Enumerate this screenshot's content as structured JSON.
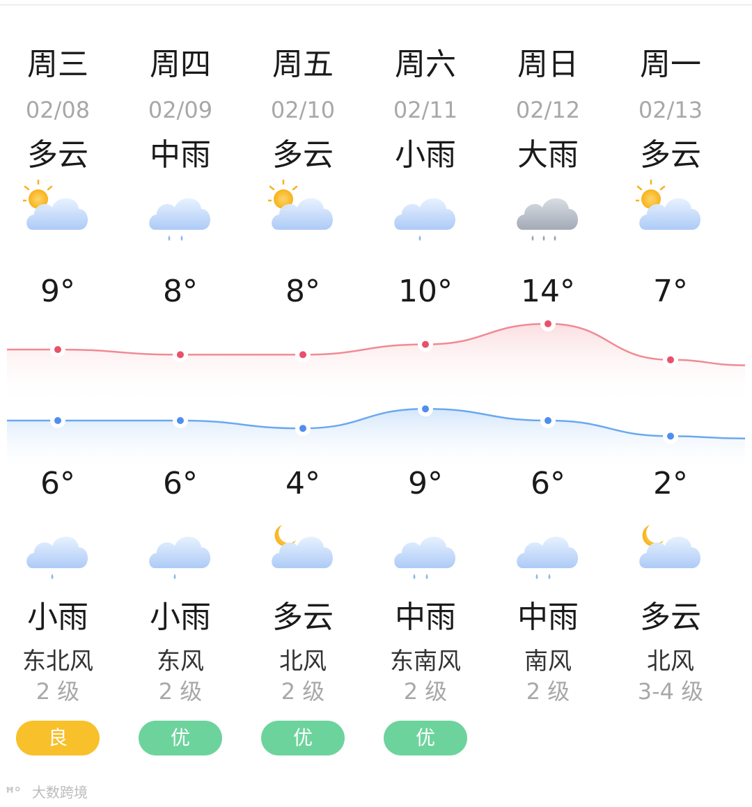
{
  "days": [
    {
      "weekday": "周三",
      "date": "02/08",
      "day_condition": "多云",
      "day_icon": "partly-cloudy-day-icon",
      "high": "9°",
      "low": "6°",
      "night_icon": "light-rain-icon",
      "night_condition": "小雨",
      "wind": "东北风",
      "wind_level": "2 级",
      "aqi": "良",
      "aqi_color": "#f8c02b"
    },
    {
      "weekday": "周四",
      "date": "02/09",
      "day_condition": "中雨",
      "day_icon": "moderate-rain-icon",
      "high": "8°",
      "low": "6°",
      "night_icon": "light-rain-icon",
      "night_condition": "小雨",
      "wind": "东风",
      "wind_level": "2 级",
      "aqi": "优",
      "aqi_color": "#6dd39c"
    },
    {
      "weekday": "周五",
      "date": "02/10",
      "day_condition": "多云",
      "day_icon": "partly-cloudy-day-icon",
      "high": "8°",
      "low": "4°",
      "night_icon": "partly-cloudy-night-icon",
      "night_condition": "多云",
      "wind": "北风",
      "wind_level": "2 级",
      "aqi": "优",
      "aqi_color": "#6dd39c"
    },
    {
      "weekday": "周六",
      "date": "02/11",
      "day_condition": "小雨",
      "day_icon": "light-rain-icon",
      "high": "10°",
      "low": "9°",
      "night_icon": "moderate-rain-icon",
      "night_condition": "中雨",
      "wind": "东南风",
      "wind_level": "2 级",
      "aqi": "优",
      "aqi_color": "#6dd39c"
    },
    {
      "weekday": "周日",
      "date": "02/12",
      "day_condition": "大雨",
      "day_icon": "heavy-rain-icon",
      "high": "14°",
      "low": "6°",
      "night_icon": "moderate-rain-icon",
      "night_condition": "中雨",
      "wind": "南风",
      "wind_level": "2 级",
      "aqi": "",
      "aqi_color": ""
    },
    {
      "weekday": "周一",
      "date": "02/13",
      "day_condition": "多云",
      "day_icon": "partly-cloudy-day-icon",
      "high": "7°",
      "low": "2°",
      "night_icon": "partly-cloudy-night-icon",
      "night_condition": "多云",
      "wind": "北风",
      "wind_level": "3-4 级",
      "aqi": "",
      "aqi_color": ""
    }
  ],
  "chart_data": {
    "type": "line",
    "categories": [
      "02/08",
      "02/09",
      "02/10",
      "02/11",
      "02/12",
      "02/13"
    ],
    "series": [
      {
        "values": [
          9,
          8,
          8,
          10,
          14,
          7
        ],
        "color": "#f08a94"
      },
      {
        "values": [
          6,
          6,
          4,
          9,
          6,
          2
        ],
        "color": "#6aa8f0"
      }
    ]
  },
  "watermark": {
    "text": "大数跨境"
  },
  "colors": {
    "high_line": "#f08a94",
    "low_line": "#6aa8f0",
    "aqi_good": "#f8c02b",
    "aqi_excellent": "#6dd39c"
  }
}
